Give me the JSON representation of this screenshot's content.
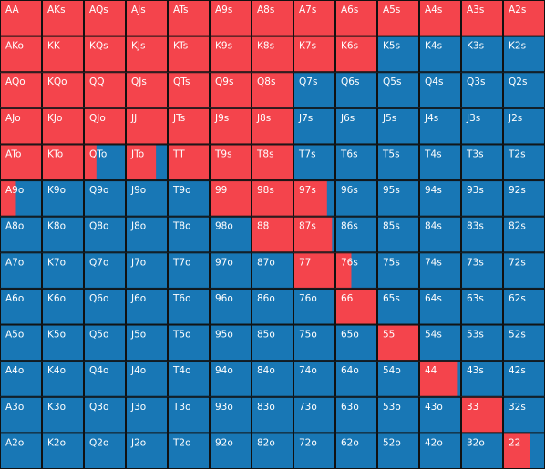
{
  "colors": {
    "raise": "#f4444c",
    "other": "#1877b5"
  },
  "hands": [
    [
      "AA",
      "AKs",
      "AQs",
      "AJs",
      "ATs",
      "A9s",
      "A8s",
      "A7s",
      "A6s",
      "A5s",
      "A4s",
      "A3s",
      "A2s"
    ],
    [
      "AKo",
      "KK",
      "KQs",
      "KJs",
      "KTs",
      "K9s",
      "K8s",
      "K7s",
      "K6s",
      "K5s",
      "K4s",
      "K3s",
      "K2s"
    ],
    [
      "AQo",
      "KQo",
      "QQ",
      "QJs",
      "QTs",
      "Q9s",
      "Q8s",
      "Q7s",
      "Q6s",
      "Q5s",
      "Q4s",
      "Q3s",
      "Q2s"
    ],
    [
      "AJo",
      "KJo",
      "QJo",
      "JJ",
      "JTs",
      "J9s",
      "J8s",
      "J7s",
      "J6s",
      "J5s",
      "J4s",
      "J3s",
      "J2s"
    ],
    [
      "ATo",
      "KTo",
      "QTo",
      "JTo",
      "TT",
      "T9s",
      "T8s",
      "T7s",
      "T6s",
      "T5s",
      "T4s",
      "T3s",
      "T2s"
    ],
    [
      "A9o",
      "K9o",
      "Q9o",
      "J9o",
      "T9o",
      "99",
      "98s",
      "97s",
      "96s",
      "95s",
      "94s",
      "93s",
      "92s"
    ],
    [
      "A8o",
      "K8o",
      "Q8o",
      "J8o",
      "T8o",
      "98o",
      "88",
      "87s",
      "86s",
      "85s",
      "84s",
      "83s",
      "82s"
    ],
    [
      "A7o",
      "K7o",
      "Q7o",
      "J7o",
      "T7o",
      "97o",
      "87o",
      "77",
      "76s",
      "75s",
      "74s",
      "73s",
      "72s"
    ],
    [
      "A6o",
      "K6o",
      "Q6o",
      "J6o",
      "T6o",
      "96o",
      "86o",
      "76o",
      "66",
      "65s",
      "64s",
      "63s",
      "62s"
    ],
    [
      "A5o",
      "K5o",
      "Q5o",
      "J5o",
      "T5o",
      "95o",
      "85o",
      "75o",
      "65o",
      "55",
      "54s",
      "53s",
      "52s"
    ],
    [
      "A4o",
      "K4o",
      "Q4o",
      "J4o",
      "T4o",
      "94o",
      "84o",
      "74o",
      "64o",
      "54o",
      "44",
      "43s",
      "42s"
    ],
    [
      "A3o",
      "K3o",
      "Q3o",
      "J3o",
      "T3o",
      "93o",
      "83o",
      "73o",
      "63o",
      "53o",
      "43o",
      "33",
      "32s"
    ],
    [
      "A2o",
      "K2o",
      "Q2o",
      "J2o",
      "T2o",
      "92o",
      "82o",
      "72o",
      "62o",
      "52o",
      "42o",
      "32o",
      "22"
    ]
  ],
  "raise": [
    [
      100,
      100,
      100,
      100,
      100,
      100,
      100,
      100,
      100,
      100,
      100,
      100,
      100
    ],
    [
      100,
      100,
      100,
      100,
      100,
      100,
      100,
      100,
      100,
      0,
      0,
      0,
      0
    ],
    [
      100,
      100,
      100,
      100,
      100,
      100,
      100,
      0,
      0,
      0,
      0,
      0,
      0
    ],
    [
      100,
      100,
      100,
      100,
      100,
      100,
      100,
      0,
      0,
      0,
      0,
      0,
      0
    ],
    [
      100,
      100,
      30,
      72,
      100,
      100,
      100,
      0,
      0,
      0,
      0,
      0,
      0
    ],
    [
      38,
      0,
      0,
      0,
      0,
      100,
      100,
      80,
      0,
      0,
      0,
      0,
      0
    ],
    [
      0,
      0,
      0,
      0,
      0,
      0,
      100,
      92,
      0,
      0,
      0,
      0,
      0
    ],
    [
      0,
      0,
      0,
      0,
      0,
      0,
      0,
      100,
      38,
      0,
      0,
      0,
      0
    ],
    [
      0,
      0,
      0,
      0,
      0,
      0,
      0,
      0,
      100,
      0,
      0,
      0,
      0
    ],
    [
      0,
      0,
      0,
      0,
      0,
      0,
      0,
      0,
      0,
      100,
      0,
      0,
      0
    ],
    [
      0,
      0,
      0,
      0,
      0,
      0,
      0,
      0,
      0,
      0,
      90,
      0,
      0
    ],
    [
      0,
      0,
      0,
      0,
      0,
      0,
      0,
      0,
      0,
      0,
      0,
      100,
      0
    ],
    [
      0,
      0,
      0,
      0,
      0,
      0,
      0,
      0,
      0,
      0,
      0,
      0,
      65
    ]
  ]
}
